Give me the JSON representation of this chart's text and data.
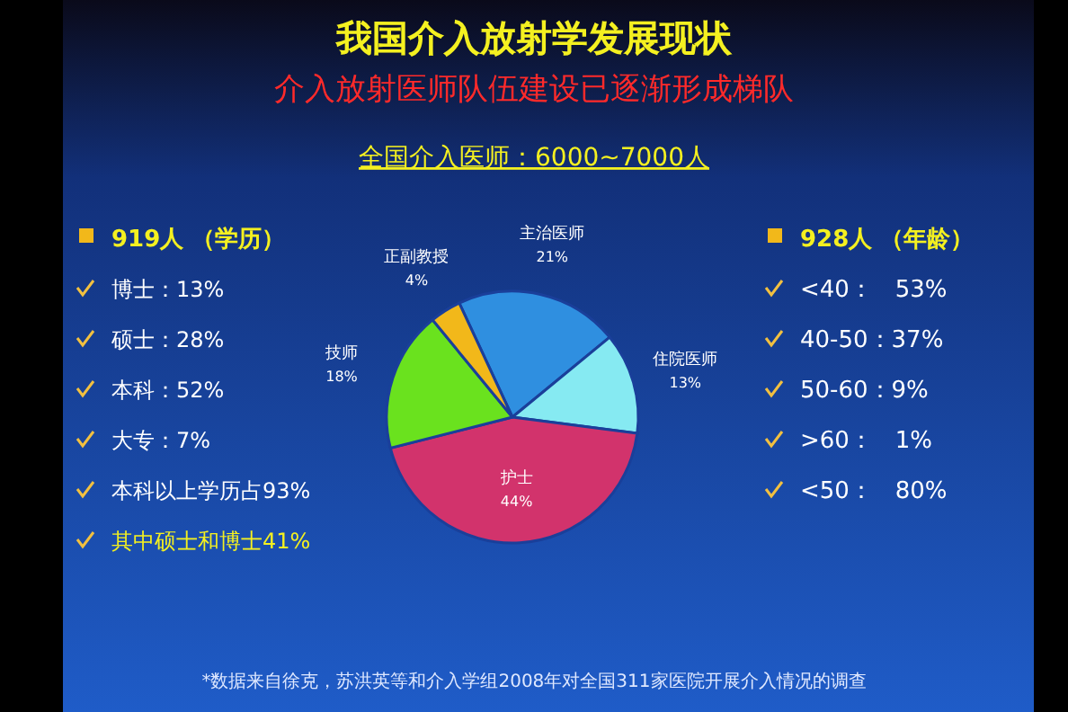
{
  "chart_data": {
    "type": "pie",
    "title": "我国介入放射学发展现状",
    "subtitle": "介入放射医师队伍建设已逐渐形成梯队",
    "categories": [
      "主治医师",
      "住院医师",
      "护士",
      "技师",
      "正副教授"
    ],
    "values": [
      21,
      13,
      44,
      18,
      4
    ],
    "colors": [
      "#2f8fe0",
      "#86eaf2",
      "#d2336c",
      "#6ae21e",
      "#f2b81a"
    ],
    "value_labels": [
      "21%",
      "13%",
      "44%",
      "18%",
      "4%"
    ],
    "annotations": [
      "全国介入医师：6000~7000人",
      "919人 （学历）",
      "博士：13%",
      "硕士：28%",
      "本科：52%",
      "大专：7%",
      "本科以上学历占93%",
      "其中硕士和博士41%",
      "928人 （年龄）",
      "<40：   53%",
      "40-50：37%",
      "50-60：9%",
      ">60：   1%",
      "<50：   80%",
      "*数据来自徐克，苏洪英等和介入学组2008年对全国311家医院开展介入情况的调查"
    ]
  }
}
